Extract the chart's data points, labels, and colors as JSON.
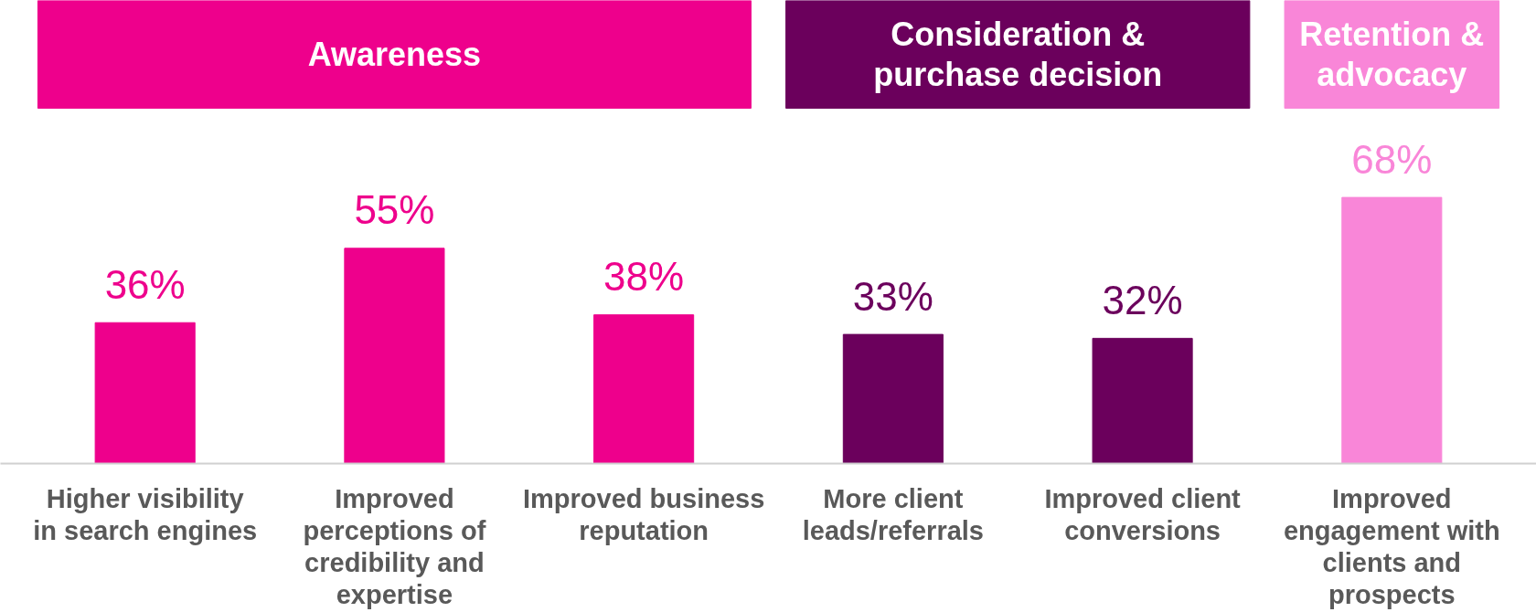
{
  "chart_data": {
    "type": "bar",
    "categories": [
      "Higher visibility in search engines",
      "Improved perceptions of credibility and expertise",
      "Improved business reputation",
      "More client leads/referrals",
      "Improved client conversions",
      "Improved engagement with clients and prospects"
    ],
    "values": [
      36,
      55,
      38,
      33,
      32,
      68
    ],
    "colors": [
      "#ee008c",
      "#ee008c",
      "#ee008c",
      "#6b005c",
      "#6b005c",
      "#f986d8"
    ],
    "value_labels": [
      "36%",
      "55%",
      "38%",
      "33%",
      "32%",
      "68%"
    ],
    "annotations": [
      "Awareness",
      "Consideration & purchase decision",
      "Retention & advocacy"
    ],
    "tick_labels": "x",
    "grid": false
  }
}
